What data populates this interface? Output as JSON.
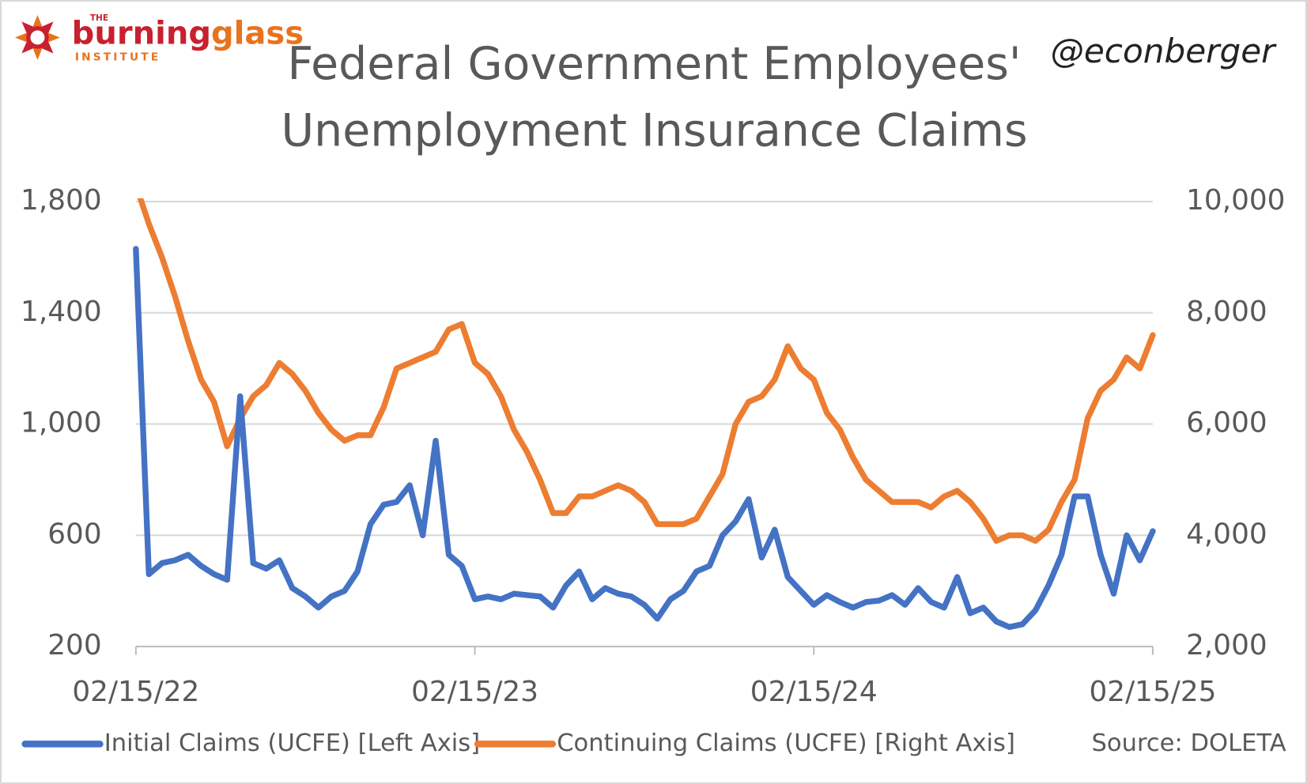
{
  "logo": {
    "top": "THE",
    "name_a": "burning",
    "name_b": "glass",
    "bottom": "INSTITUTE"
  },
  "handle": "@econberger",
  "source": "Source: DOLETA",
  "chart_data": {
    "type": "line",
    "title": [
      "Federal Government Employees'",
      "Unemployment Insurance Claims"
    ],
    "categories": [
      "02/15/22",
      null,
      null,
      null,
      null,
      null,
      null,
      null,
      null,
      null,
      null,
      null,
      null,
      null,
      null,
      null,
      null,
      null,
      null,
      null,
      null,
      null,
      null,
      null,
      null,
      null,
      "02/15/23",
      null,
      null,
      null,
      null,
      null,
      null,
      null,
      null,
      null,
      null,
      null,
      null,
      null,
      null,
      null,
      null,
      null,
      null,
      null,
      null,
      null,
      null,
      null,
      null,
      null,
      "02/15/24",
      null,
      null,
      null,
      null,
      null,
      null,
      null,
      null,
      null,
      null,
      null,
      null,
      null,
      null,
      null,
      null,
      null,
      null,
      null,
      null,
      null,
      null,
      null,
      null,
      null,
      "02/15/25"
    ],
    "series": [
      {
        "name": "Initial Claims (UCFE) [Left Axis]",
        "color": "#4472c4",
        "axis": "y",
        "values": [
          1630,
          460,
          500,
          510,
          530,
          490,
          460,
          440,
          1100,
          500,
          480,
          510,
          410,
          380,
          340,
          380,
          400,
          470,
          640,
          710,
          720,
          780,
          600,
          940,
          530,
          490,
          370,
          380,
          370,
          390,
          385,
          380,
          340,
          420,
          470,
          370,
          410,
          390,
          380,
          350,
          300,
          370,
          400,
          470,
          490,
          600,
          650,
          730,
          520,
          620,
          450,
          400,
          350,
          385,
          360,
          340,
          360,
          365,
          385,
          350,
          410,
          360,
          340,
          450,
          320,
          340,
          290,
          270,
          280,
          330,
          420,
          530,
          740,
          740,
          530,
          390,
          600,
          510,
          615
        ]
      },
      {
        "name": "Continuing Claims (UCFE) [Right Axis]",
        "color": "#ed7d31",
        "axis": "y2",
        "values": [
          10300,
          9600,
          9000,
          8300,
          7500,
          6800,
          6400,
          5600,
          6100,
          6500,
          6700,
          7100,
          6900,
          6600,
          6200,
          5900,
          5700,
          5800,
          5800,
          6300,
          7000,
          7100,
          7200,
          7300,
          7700,
          7800,
          7100,
          6900,
          6500,
          5900,
          5500,
          5000,
          4400,
          4400,
          4700,
          4700,
          4800,
          4900,
          4800,
          4600,
          4200,
          4200,
          4200,
          4300,
          4700,
          5100,
          6000,
          6400,
          6500,
          6800,
          7400,
          7000,
          6800,
          6200,
          5900,
          5400,
          5000,
          4800,
          4600,
          4600,
          4600,
          4500,
          4700,
          4800,
          4600,
          4300,
          3900,
          4000,
          4000,
          3900,
          4100,
          4600,
          5000,
          6100,
          6600,
          6800,
          7200,
          7000,
          7600
        ]
      }
    ],
    "ylim": [
      200,
      1800
    ],
    "yticks": [
      200,
      600,
      {
        "value": 1000,
        "label": "1,000"
      },
      {
        "value": 1400,
        "label": "1,400"
      },
      {
        "value": 1800,
        "label": "1,800"
      }
    ],
    "y2lim": [
      2000,
      10000
    ],
    "y2ticks": [
      {
        "value": 2000,
        "label": "2,000"
      },
      {
        "value": 4000,
        "label": "4,000"
      },
      {
        "value": 6000,
        "label": "6,000"
      },
      {
        "value": 8000,
        "label": "8,000"
      },
      {
        "value": 10000,
        "label": "10,000"
      }
    ],
    "grid": true,
    "legend": "bottom"
  }
}
